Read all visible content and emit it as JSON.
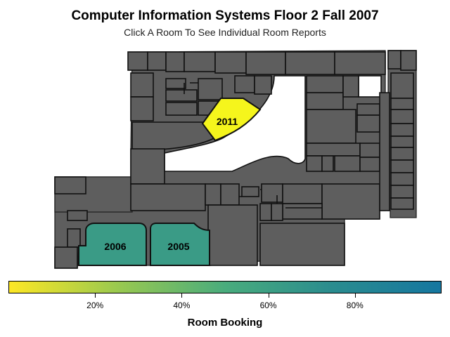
{
  "header": {
    "title": "Computer Information Systems Floor 2 Fall 2007",
    "subtitle": "Click A Room To See Individual Room Reports"
  },
  "rooms": [
    {
      "id": "2011",
      "label": "2011",
      "booking": 0.01,
      "color": "#f5f51c"
    },
    {
      "id": "2006",
      "label": "2006",
      "booking": 0.62,
      "color": "#3a9b86"
    },
    {
      "id": "2005",
      "label": "2005",
      "booking": 0.62,
      "color": "#3a9b86"
    }
  ],
  "legend": {
    "title": "Room Booking",
    "colors": [
      "#fde725",
      "#9ac94f",
      "#49ac7d",
      "#2a8c8f",
      "#1577a0"
    ],
    "ticks": [
      {
        "value": 0.2,
        "label": "20%"
      },
      {
        "value": 0.4,
        "label": "40%"
      },
      {
        "value": 0.6,
        "label": "60%"
      },
      {
        "value": 0.8,
        "label": "80%"
      }
    ]
  },
  "map_style": {
    "unmeasured_room_color": "#5e5e5e",
    "outline_color": "#111111"
  }
}
